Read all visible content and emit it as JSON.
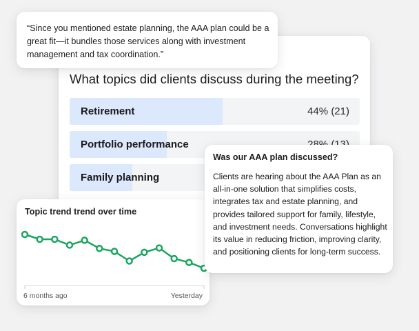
{
  "quote": {
    "text": "“Since you mentioned estate planning, the AAA plan could be a great fit—it bundles those services along with investment management and tax coordination.”"
  },
  "poll": {
    "question": "What topics did clients discuss during the meeting?",
    "accent_color": "#dce8fb",
    "options": [
      {
        "label": "Retirement",
        "value_text": "44% (21)",
        "share": 0.44
      },
      {
        "label": "Portfolio performance",
        "value_text": "28% (13)",
        "share": 0.28
      },
      {
        "label": "Family planning",
        "value_text": "",
        "share": 0.18
      }
    ]
  },
  "info": {
    "title": "Was our AAA plan discussed?",
    "body": "Clients are hearing about the AAA Plan as an all-in-one solution that simplifies costs, integrates tax and estate planning, and provides tailored support for family, lifestyle, and investment needs. Conversations highlight its value in reducing friction, improving clarity, and positioning clients for long-term success."
  },
  "trend": {
    "title": "Topic trend trend over time",
    "x_start_label": "6 months ago",
    "x_end_label": "Yesterday",
    "line_color": "#1aa560"
  },
  "chart_data": {
    "type": "line",
    "title": "Topic trend trend over time",
    "x": [
      "6 months ago",
      "",
      "",
      "",
      "",
      "",
      "",
      "",
      "",
      "",
      "",
      "",
      "Yesterday"
    ],
    "series": [
      {
        "values": [
          0.9,
          0.8,
          0.8,
          0.68,
          0.78,
          0.61,
          0.55,
          0.35,
          0.53,
          0.62,
          0.4,
          0.32,
          0.2
        ]
      }
    ],
    "grid": false
  }
}
